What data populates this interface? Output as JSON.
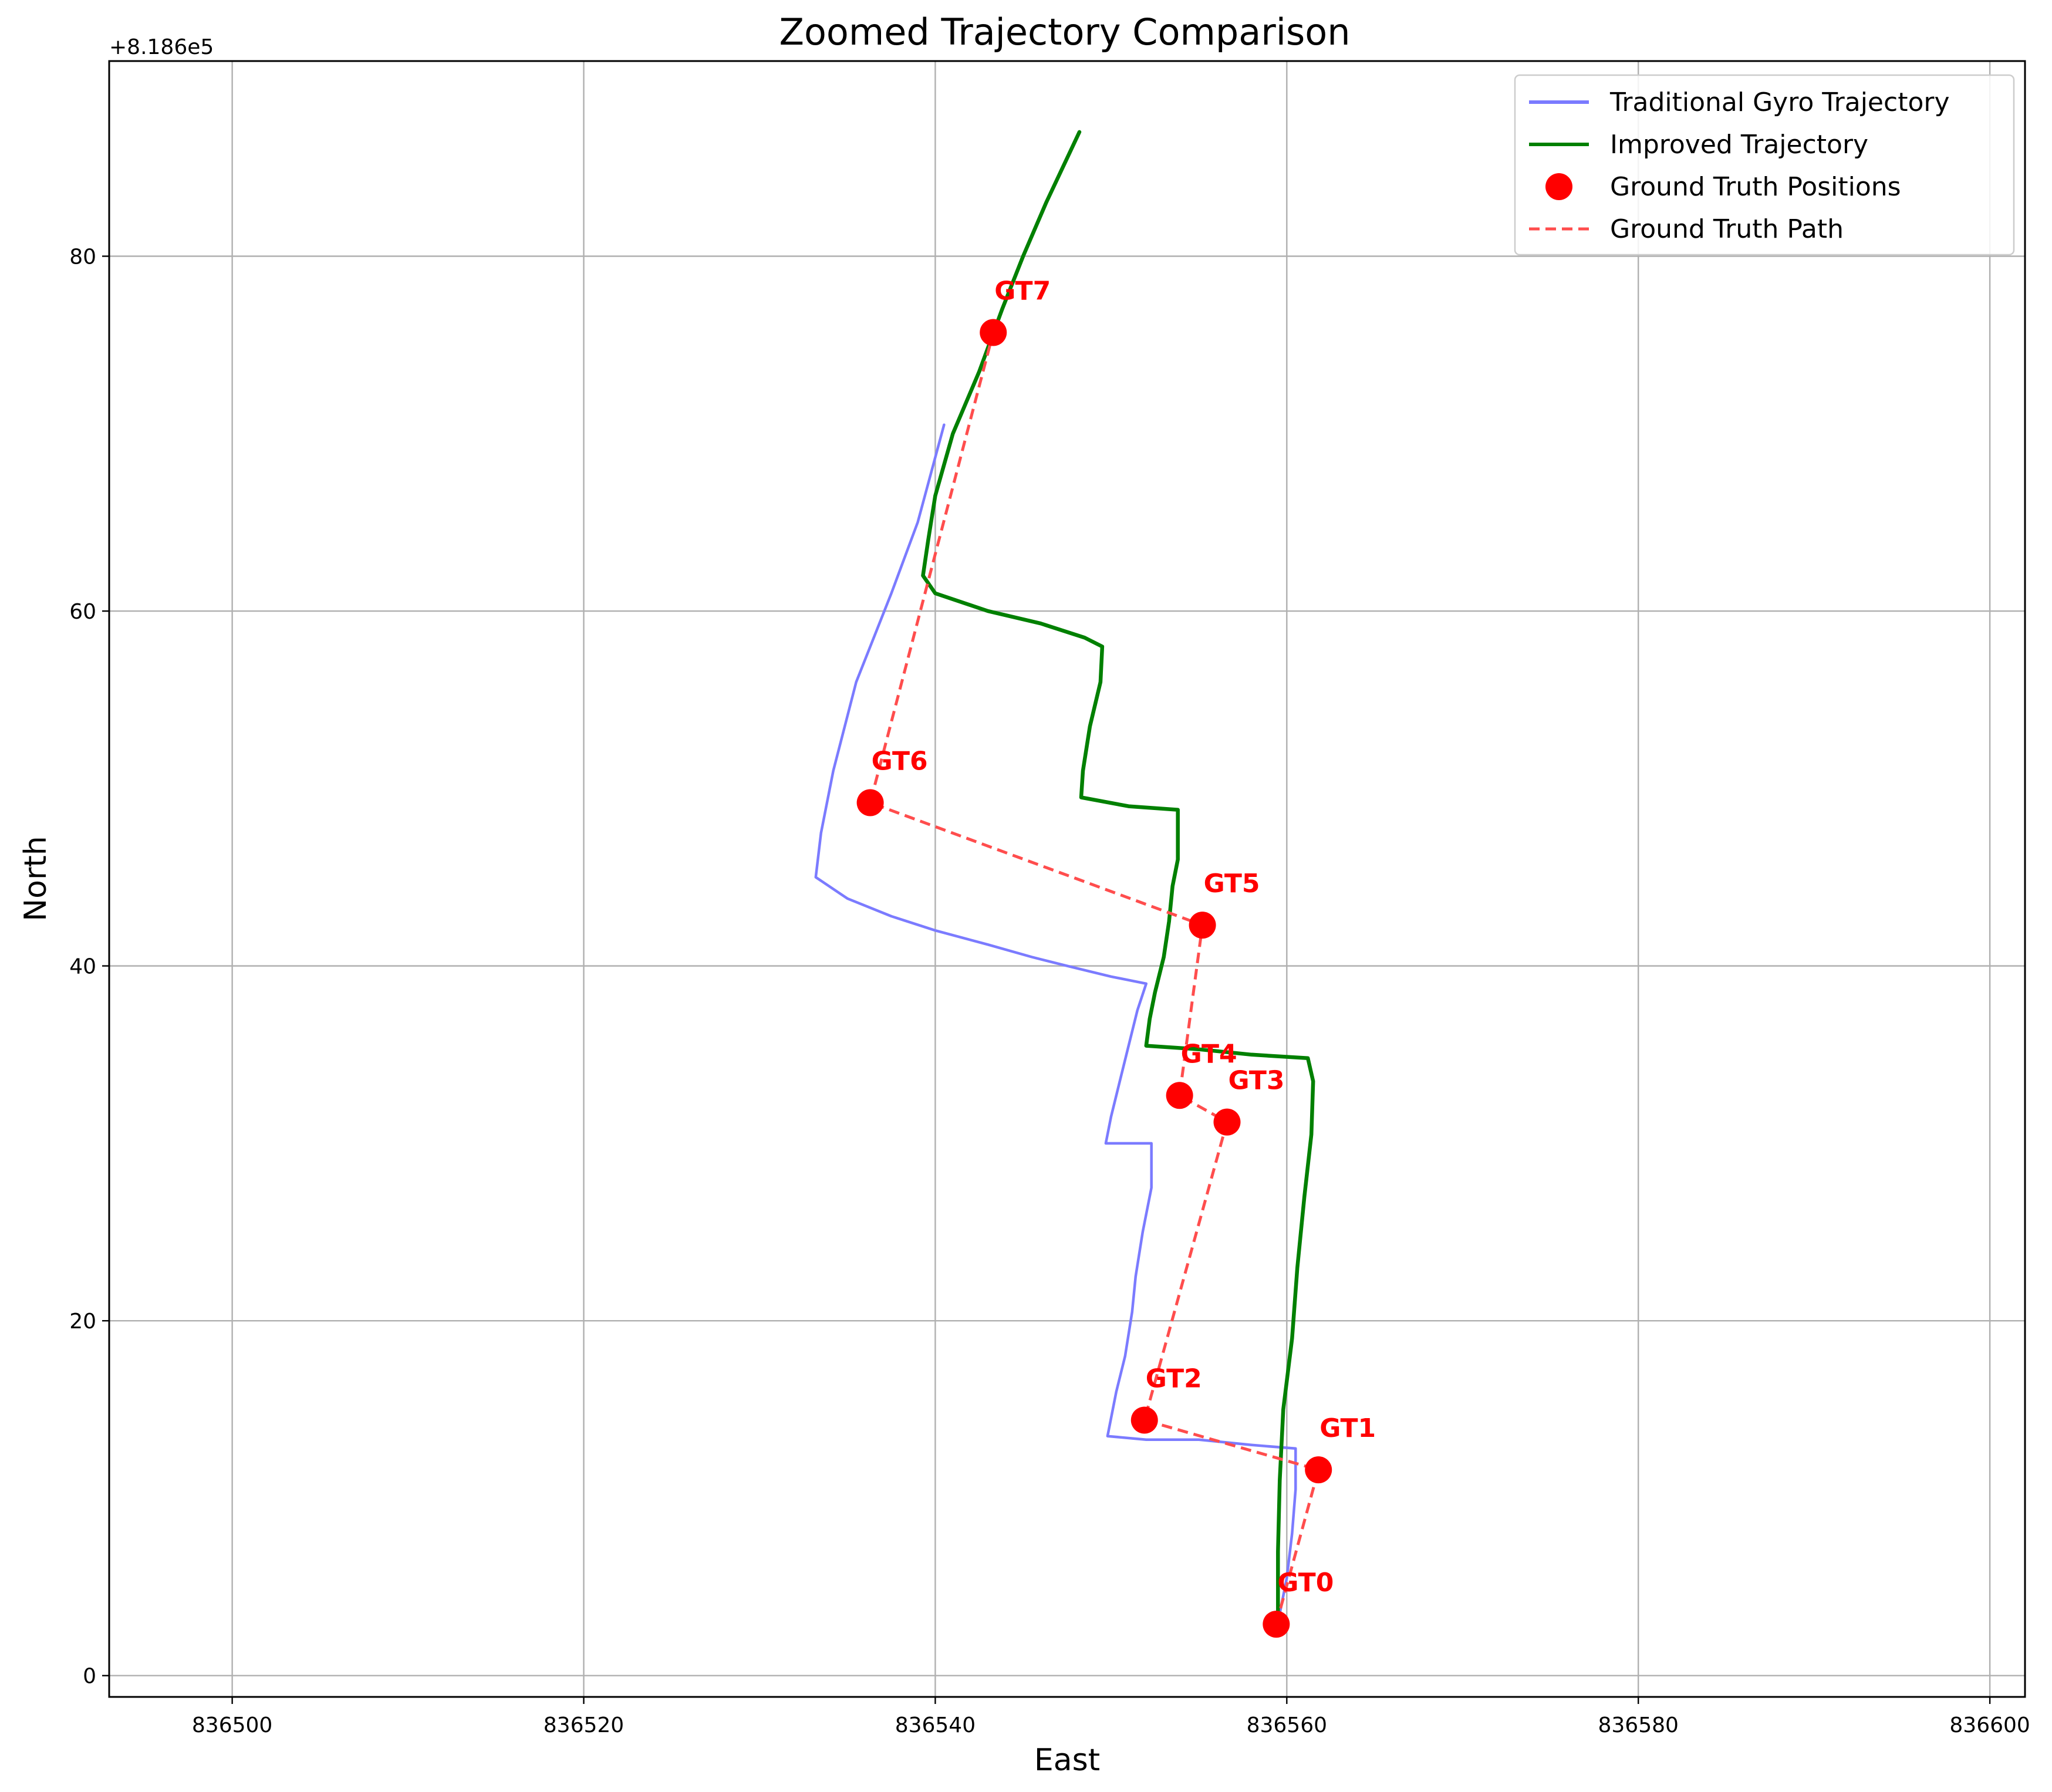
{
  "chart_data": {
    "type": "line",
    "title": "Zoomed Trajectory Comparison",
    "xlabel": "East",
    "ylabel": "North",
    "y_offset_label": "+8.186e5",
    "y_offset": 818600,
    "xlim": [
      836493,
      836602
    ],
    "ylim": [
      -1.2,
      91.0
    ],
    "x_ticks": [
      836500,
      836520,
      836540,
      836560,
      836580,
      836600
    ],
    "x_tick_labels": [
      "836500",
      "836520",
      "836540",
      "836560",
      "836580",
      "836600"
    ],
    "y_ticks": [
      0,
      20,
      40,
      60,
      80
    ],
    "y_tick_labels": [
      "0",
      "20",
      "40",
      "60",
      "80"
    ],
    "grid": true,
    "legend_position": "top-right",
    "series": [
      {
        "name": "Traditional Gyro Trajectory",
        "kind": "line",
        "color": "#7b7bff",
        "points": [
          [
            836559.5,
            3.0
          ],
          [
            836560.0,
            5.5
          ],
          [
            836560.3,
            8.0
          ],
          [
            836560.5,
            10.5
          ],
          [
            836560.5,
            12.8
          ],
          [
            836558.0,
            13.0
          ],
          [
            836555.0,
            13.3
          ],
          [
            836552.0,
            13.3
          ],
          [
            836549.8,
            13.5
          ],
          [
            836550.3,
            16.0
          ],
          [
            836550.8,
            18.0
          ],
          [
            836551.2,
            20.5
          ],
          [
            836551.4,
            22.5
          ],
          [
            836551.8,
            25.0
          ],
          [
            836552.3,
            27.5
          ],
          [
            836552.3,
            30.0
          ],
          [
            836549.7,
            30.0
          ],
          [
            836550.0,
            31.5
          ],
          [
            836550.5,
            33.5
          ],
          [
            836551.0,
            35.5
          ],
          [
            836551.5,
            37.5
          ],
          [
            836552.0,
            39.0
          ],
          [
            836550.0,
            39.4
          ],
          [
            836547.5,
            40.0
          ],
          [
            836545.5,
            40.5
          ],
          [
            836543.0,
            41.2
          ],
          [
            836540.0,
            42.0
          ],
          [
            836537.5,
            42.8
          ],
          [
            836535.0,
            43.8
          ],
          [
            836533.2,
            45.0
          ],
          [
            836533.5,
            47.5
          ],
          [
            836534.2,
            51.0
          ],
          [
            836535.5,
            56.0
          ],
          [
            836537.5,
            61.0
          ],
          [
            836539.0,
            65.0
          ],
          [
            836540.5,
            70.5
          ]
        ]
      },
      {
        "name": "Improved Trajectory",
        "kind": "line",
        "color": "#008000",
        "points": [
          [
            836559.5,
            3.0
          ],
          [
            836559.5,
            7.0
          ],
          [
            836559.6,
            11.0
          ],
          [
            836559.8,
            15.0
          ],
          [
            836560.3,
            19.0
          ],
          [
            836560.6,
            23.0
          ],
          [
            836561.0,
            27.0
          ],
          [
            836561.4,
            30.5
          ],
          [
            836561.5,
            33.5
          ],
          [
            836561.2,
            34.8
          ],
          [
            836558.0,
            35.0
          ],
          [
            836555.0,
            35.3
          ],
          [
            836552.0,
            35.5
          ],
          [
            836552.2,
            37.0
          ],
          [
            836552.5,
            38.5
          ],
          [
            836553.0,
            40.5
          ],
          [
            836553.3,
            42.5
          ],
          [
            836553.5,
            44.5
          ],
          [
            836553.8,
            46.0
          ],
          [
            836553.8,
            48.8
          ],
          [
            836551.0,
            49.0
          ],
          [
            836548.3,
            49.5
          ],
          [
            836548.4,
            51.0
          ],
          [
            836548.8,
            53.5
          ],
          [
            836549.4,
            56.0
          ],
          [
            836549.5,
            58.0
          ],
          [
            836548.5,
            58.5
          ],
          [
            836546.0,
            59.3
          ],
          [
            836543.0,
            60.0
          ],
          [
            836540.0,
            61.0
          ],
          [
            836539.3,
            62.0
          ],
          [
            836539.6,
            64.0
          ],
          [
            836540.0,
            66.5
          ],
          [
            836541.0,
            70.0
          ],
          [
            836542.5,
            73.5
          ],
          [
            836543.8,
            77.0
          ],
          [
            836545.0,
            80.0
          ],
          [
            836546.3,
            83.0
          ],
          [
            836548.2,
            87.0
          ]
        ]
      },
      {
        "name": "Ground Truth Path",
        "kind": "dashed",
        "color": "#ff4d4d",
        "points": [
          [
            836559.4,
            2.9
          ],
          [
            836561.8,
            11.6
          ],
          [
            836551.9,
            14.4
          ],
          [
            836556.6,
            31.2
          ],
          [
            836553.9,
            32.7
          ],
          [
            836555.2,
            42.3
          ],
          [
            836536.3,
            49.2
          ],
          [
            836543.3,
            75.7
          ]
        ]
      }
    ],
    "ground_truth_positions": {
      "name": "Ground Truth Positions",
      "color": "#ff0000",
      "points": [
        {
          "label": "GT0",
          "x": 836559.4,
          "y": 2.9
        },
        {
          "label": "GT1",
          "x": 836561.8,
          "y": 11.6
        },
        {
          "label": "GT2",
          "x": 836551.9,
          "y": 14.4
        },
        {
          "label": "GT3",
          "x": 836556.6,
          "y": 31.2
        },
        {
          "label": "GT4",
          "x": 836553.9,
          "y": 32.7
        },
        {
          "label": "GT5",
          "x": 836555.2,
          "y": 42.3
        },
        {
          "label": "GT6",
          "x": 836536.3,
          "y": 49.2
        },
        {
          "label": "GT7",
          "x": 836543.3,
          "y": 75.7
        }
      ]
    },
    "legend": [
      {
        "label": "Traditional Gyro Trajectory",
        "kind": "line",
        "color": "#7b7bff"
      },
      {
        "label": "Improved Trajectory",
        "kind": "line",
        "color": "#008000"
      },
      {
        "label": "Ground Truth Positions",
        "kind": "marker",
        "color": "#ff0000"
      },
      {
        "label": "Ground Truth Path",
        "kind": "dashed",
        "color": "#ff4d4d"
      }
    ]
  }
}
